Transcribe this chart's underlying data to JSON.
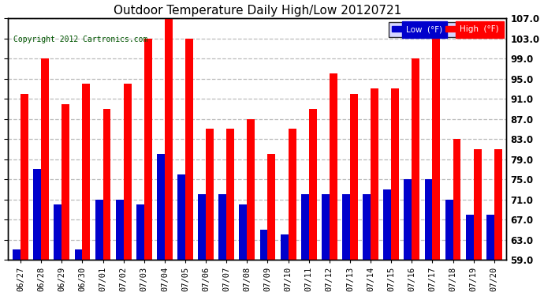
{
  "title": "Outdoor Temperature Daily High/Low 20120721",
  "copyright": "Copyright 2012 Cartronics.com",
  "categories": [
    "06/27",
    "06/28",
    "06/29",
    "06/30",
    "07/01",
    "07/02",
    "07/03",
    "07/04",
    "07/05",
    "07/06",
    "07/07",
    "07/08",
    "07/09",
    "07/10",
    "07/11",
    "07/12",
    "07/13",
    "07/14",
    "07/15",
    "07/16",
    "07/17",
    "07/18",
    "07/19",
    "07/20"
  ],
  "highs": [
    92,
    99,
    90,
    94,
    89,
    94,
    103,
    107,
    103,
    85,
    85,
    87,
    80,
    85,
    89,
    96,
    92,
    93,
    93,
    99,
    103,
    83,
    81,
    81
  ],
  "lows": [
    61,
    77,
    70,
    61,
    71,
    71,
    70,
    80,
    76,
    72,
    72,
    70,
    65,
    64,
    72,
    72,
    72,
    72,
    73,
    75,
    75,
    71,
    68,
    68
  ],
  "high_color": "#ff0000",
  "low_color": "#0000cc",
  "bg_color": "#ffffff",
  "grid_color": "#bbbbbb",
  "ymin": 59.0,
  "ymax": 107.0,
  "yticks": [
    59.0,
    63.0,
    67.0,
    71.0,
    75.0,
    79.0,
    83.0,
    87.0,
    91.0,
    95.0,
    99.0,
    103.0,
    107.0
  ],
  "bar_width": 0.38,
  "legend_low_label": "Low  (°F)",
  "legend_high_label": "High  (°F)"
}
